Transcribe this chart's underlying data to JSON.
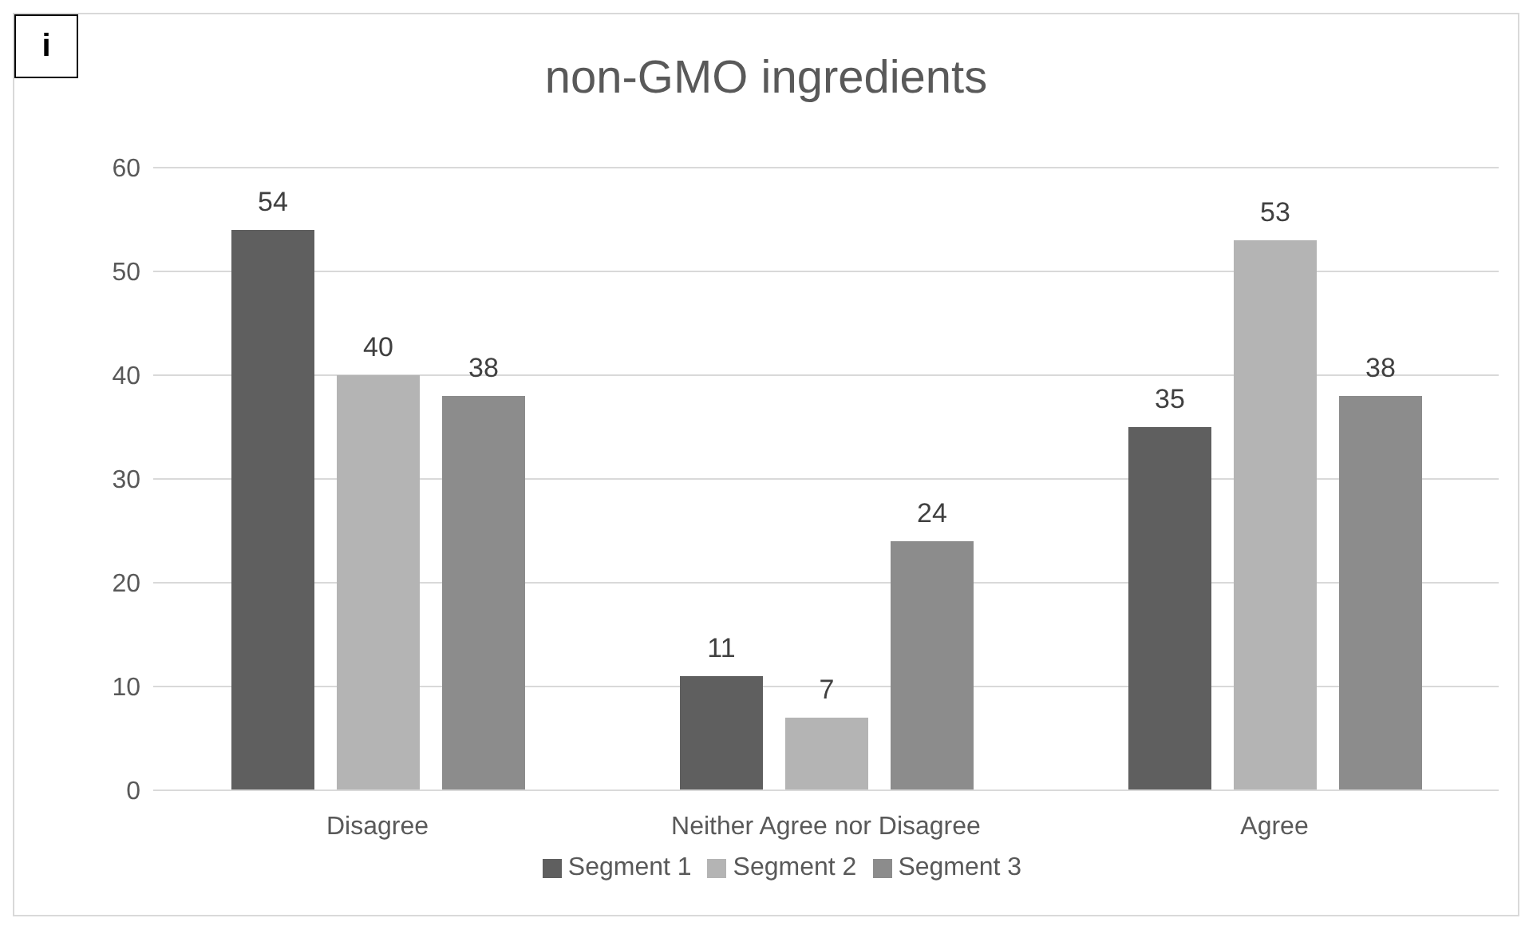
{
  "chart_data": {
    "type": "bar",
    "title": "non-GMO ingredients",
    "annotations": [
      "i"
    ],
    "categories": [
      "Disagree",
      "Neither Agree nor Disagree",
      "Agree"
    ],
    "series": [
      {
        "name": "Segment 1",
        "color": "#5f5f5f",
        "values": [
          54,
          11,
          35
        ]
      },
      {
        "name": "Segment 2",
        "color": "#b4b4b4",
        "values": [
          40,
          7,
          53
        ]
      },
      {
        "name": "Segment 3",
        "color": "#8c8c8c",
        "values": [
          38,
          24,
          38
        ]
      }
    ],
    "ylim": [
      0,
      60
    ],
    "yticks": [
      0,
      10,
      20,
      30,
      40,
      50,
      60
    ],
    "grid": "y",
    "legend": "bottom",
    "data_labels": true
  }
}
